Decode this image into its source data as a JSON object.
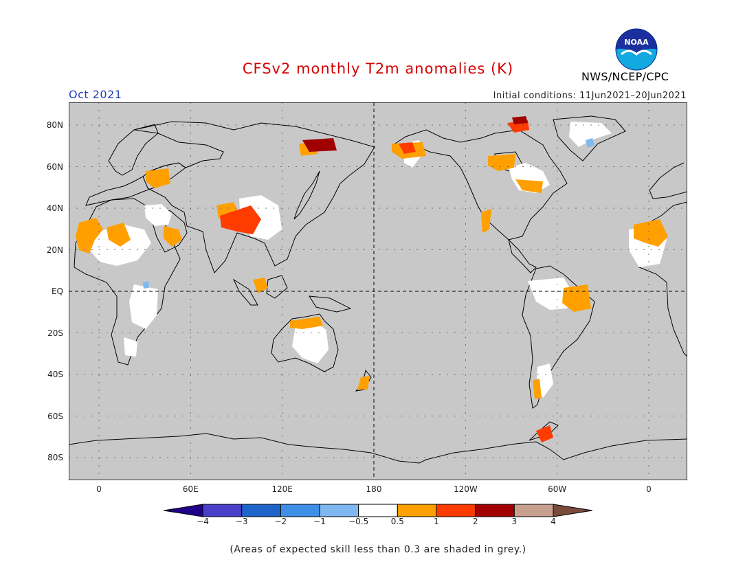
{
  "title": "CFSv2 monthly T2m anomalies (K)",
  "valid_month": "Oct 2021",
  "initial_conditions": "Initial conditions: 11Jun2021–20Jun2021",
  "organization": "NWS/NCEP/CPC",
  "logo_text": "NOAA",
  "footnote": "(Areas of expected skill less than 0.3 are shaded in grey.)",
  "colors": {
    "title": "#d40000",
    "month": "#1f3fbf",
    "skill_grey": "#c8c8c8",
    "near_zero": "#ffffff"
  },
  "lat_labels": [
    {
      "label": "80N",
      "lat": 80
    },
    {
      "label": "60N",
      "lat": 60
    },
    {
      "label": "40N",
      "lat": 40
    },
    {
      "label": "20N",
      "lat": 20
    },
    {
      "label": "EQ",
      "lat": 0
    },
    {
      "label": "20S",
      "lat": -20
    },
    {
      "label": "40S",
      "lat": -40
    },
    {
      "label": "60S",
      "lat": -60
    },
    {
      "label": "80S",
      "lat": -80
    }
  ],
  "lon_labels": [
    {
      "label": "0",
      "lon": 0
    },
    {
      "label": "60E",
      "lon": 60
    },
    {
      "label": "120E",
      "lon": 120
    },
    {
      "label": "180",
      "lon": 180
    },
    {
      "label": "120W",
      "lon": 240
    },
    {
      "label": "60W",
      "lon": 300
    },
    {
      "label": "0",
      "lon": 360
    }
  ],
  "colorbar": {
    "labels": [
      "−4",
      "−3",
      "−2",
      "−1",
      "−0.5",
      "0.5",
      "1",
      "2",
      "3",
      "4"
    ],
    "colors": [
      "#20008a",
      "#4a3fc8",
      "#1f64c8",
      "#3f8fe6",
      "#7fb8f0",
      "#ffffff",
      "#ffa000",
      "#ff3c00",
      "#a00000",
      "#c8a090",
      "#7a4a3a"
    ]
  }
}
